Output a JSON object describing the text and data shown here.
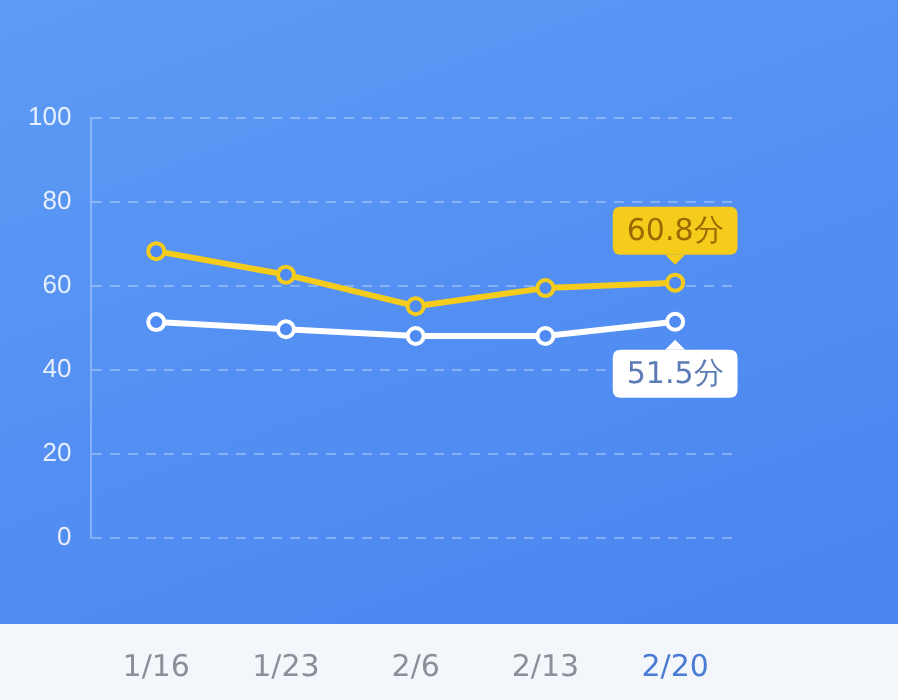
{
  "chart_data": {
    "type": "line",
    "categories": [
      "1/16",
      "1/23",
      "2/6",
      "2/13",
      "2/20"
    ],
    "series": [
      {
        "color": "#f5cb1c",
        "values": [
          68.3,
          62.7,
          55.2,
          59.5,
          60.8
        ],
        "value_labels": [
          null,
          null,
          null,
          null,
          "60.8分"
        ]
      },
      {
        "color": "#ffffff",
        "values": [
          51.4,
          49.7,
          48.1,
          48.1,
          51.5
        ],
        "value_labels": [
          null,
          null,
          null,
          null,
          "51.5分"
        ]
      }
    ],
    "ylim": [
      0,
      100
    ],
    "yticks": [
      0,
      20,
      40,
      60,
      80,
      100
    ],
    "grid": "y",
    "marker": "circle",
    "line_style": "solid",
    "legend": false
  }
}
